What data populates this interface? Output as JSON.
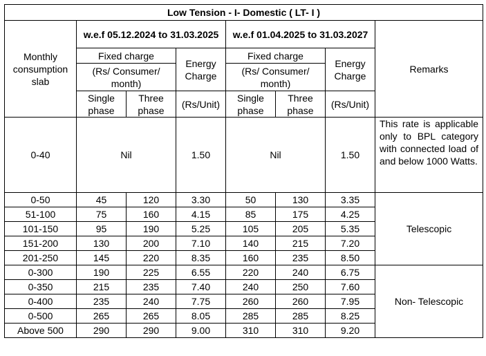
{
  "title": "Low Tension - I- Domestic ( LT- I )",
  "headers": {
    "slab": "Monthly consumption slab",
    "period1": "w.e.f 05.12.2024 to 31.03.2025",
    "period2": "w.e.f 01.04.2025 to 31.03.2027",
    "fixed_charge": "Fixed charge",
    "fixed_unit": "(Rs/ Consumer/ month)",
    "energy_charge": "Energy Charge",
    "energy_unit": "(Rs/Unit)",
    "single_phase": "Single phase",
    "three_phase": "Three phase",
    "remarks": "Remarks"
  },
  "nil_row": {
    "slab": "0-40",
    "fixed1": "Nil",
    "energy1": "1.50",
    "fixed2": "Nil",
    "energy2": "1.50",
    "remark": "This rate is applicable only to BPL category with connected load of and below 1000 Watts."
  },
  "telescopic_remark": "Telescopic",
  "non_telescopic_remark": "Non- Telescopic",
  "rows": [
    {
      "slab": "0-50",
      "sp1": "45",
      "tp1": "120",
      "e1": "3.30",
      "sp2": "50",
      "tp2": "130",
      "e2": "3.35"
    },
    {
      "slab": "51-100",
      "sp1": "75",
      "tp1": "160",
      "e1": "4.15",
      "sp2": "85",
      "tp2": "175",
      "e2": "4.25"
    },
    {
      "slab": "101-150",
      "sp1": "95",
      "tp1": "190",
      "e1": "5.25",
      "sp2": "105",
      "tp2": "205",
      "e2": "5.35"
    },
    {
      "slab": "151-200",
      "sp1": "130",
      "tp1": "200",
      "e1": "7.10",
      "sp2": "140",
      "tp2": "215",
      "e2": "7.20"
    },
    {
      "slab": "201-250",
      "sp1": "145",
      "tp1": "220",
      "e1": "8.35",
      "sp2": "160",
      "tp2": "235",
      "e2": "8.50"
    },
    {
      "slab": "0-300",
      "sp1": "190",
      "tp1": "225",
      "e1": "6.55",
      "sp2": "220",
      "tp2": "240",
      "e2": "6.75"
    },
    {
      "slab": "0-350",
      "sp1": "215",
      "tp1": "235",
      "e1": "7.40",
      "sp2": "240",
      "tp2": "250",
      "e2": "7.60"
    },
    {
      "slab": "0-400",
      "sp1": "235",
      "tp1": "240",
      "e1": "7.75",
      "sp2": "260",
      "tp2": "260",
      "e2": "7.95"
    },
    {
      "slab": "0-500",
      "sp1": "265",
      "tp1": "265",
      "e1": "8.05",
      "sp2": "285",
      "tp2": "285",
      "e2": "8.25"
    },
    {
      "slab": "Above 500",
      "sp1": "290",
      "tp1": "290",
      "e1": "9.00",
      "sp2": "310",
      "tp2": "310",
      "e2": "9.20"
    }
  ]
}
